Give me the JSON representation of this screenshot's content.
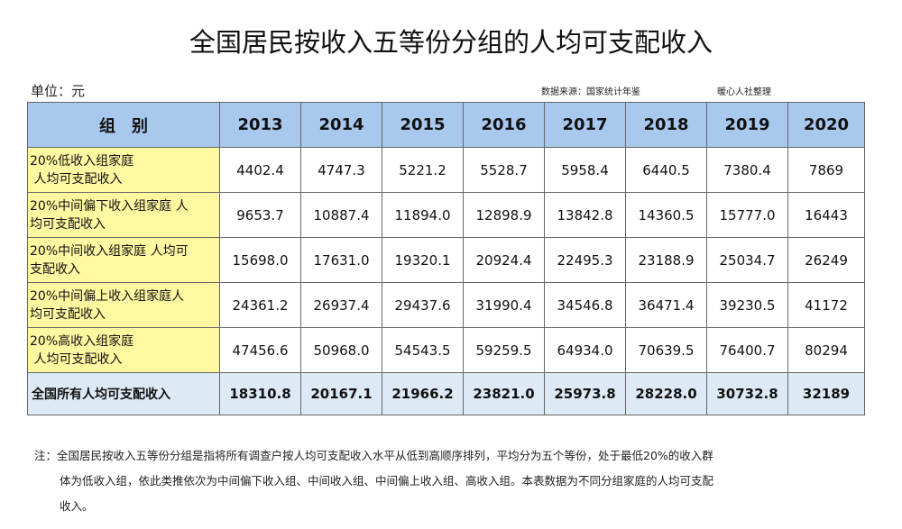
{
  "title": "全国居民按收入五等份分组的人均可支配收入",
  "unit": "单位：元",
  "source": "数据来源：国家统计年鉴",
  "credit": "暖心人社整理",
  "table": {
    "header": [
      "组　别",
      "2013",
      "2014",
      "2015",
      "2016",
      "2017",
      "2018",
      "2019",
      "2020"
    ],
    "rows": [
      {
        "label": [
          "20%低收入组家庭",
          " 人均可支配收入"
        ],
        "values": [
          "4402.4",
          "4747.3",
          "5221.2",
          "5528.7",
          "5958.4",
          "6440.5",
          "7380.4",
          "7869"
        ]
      },
      {
        "label": [
          "20%中间偏下收入组家庭 人",
          "均可支配收入"
        ],
        "values": [
          "9653.7",
          "10887.4",
          "11894.0",
          "12898.9",
          "13842.8",
          "14360.5",
          "15777.0",
          "16443"
        ]
      },
      {
        "label": [
          "20%中间收入组家庭 人均可",
          "支配收入"
        ],
        "values": [
          "15698.0",
          "17631.0",
          "19320.1",
          "20924.4",
          "22495.3",
          "23188.9",
          "25034.7",
          "26249"
        ]
      },
      {
        "label": [
          "20%中间偏上收入组家庭人",
          "均可支配收入"
        ],
        "values": [
          "24361.2",
          "26937.4",
          "29437.6",
          "31990.4",
          "34546.8",
          "36471.4",
          "39230.5",
          "41172"
        ]
      },
      {
        "label": [
          "20%高收入组家庭",
          " 人均可支配收入"
        ],
        "values": [
          "47456.6",
          "50968.0",
          "54543.5",
          "59259.5",
          "64934.0",
          "70639.5",
          "76400.7",
          "80294"
        ]
      }
    ],
    "total": {
      "label": "全国所有人均可支配收入",
      "values": [
        "18310.8",
        "20167.1",
        "21966.2",
        "23821.0",
        "25973.8",
        "28228.0",
        "30732.8",
        "32189"
      ]
    }
  },
  "note": [
    "注：全国居民按收入五等份分组是指将所有调查户按人均可支配收入水平从低到高顺序排列，平均分为五个等份，处于最低20%的收入群",
    "体为低收入组，依此类推依次为中间偏下收入组、中间收入组、中间偏上收入组、高收入组。本表数据为不同分组家庭的人均可支配",
    "收入。"
  ]
}
